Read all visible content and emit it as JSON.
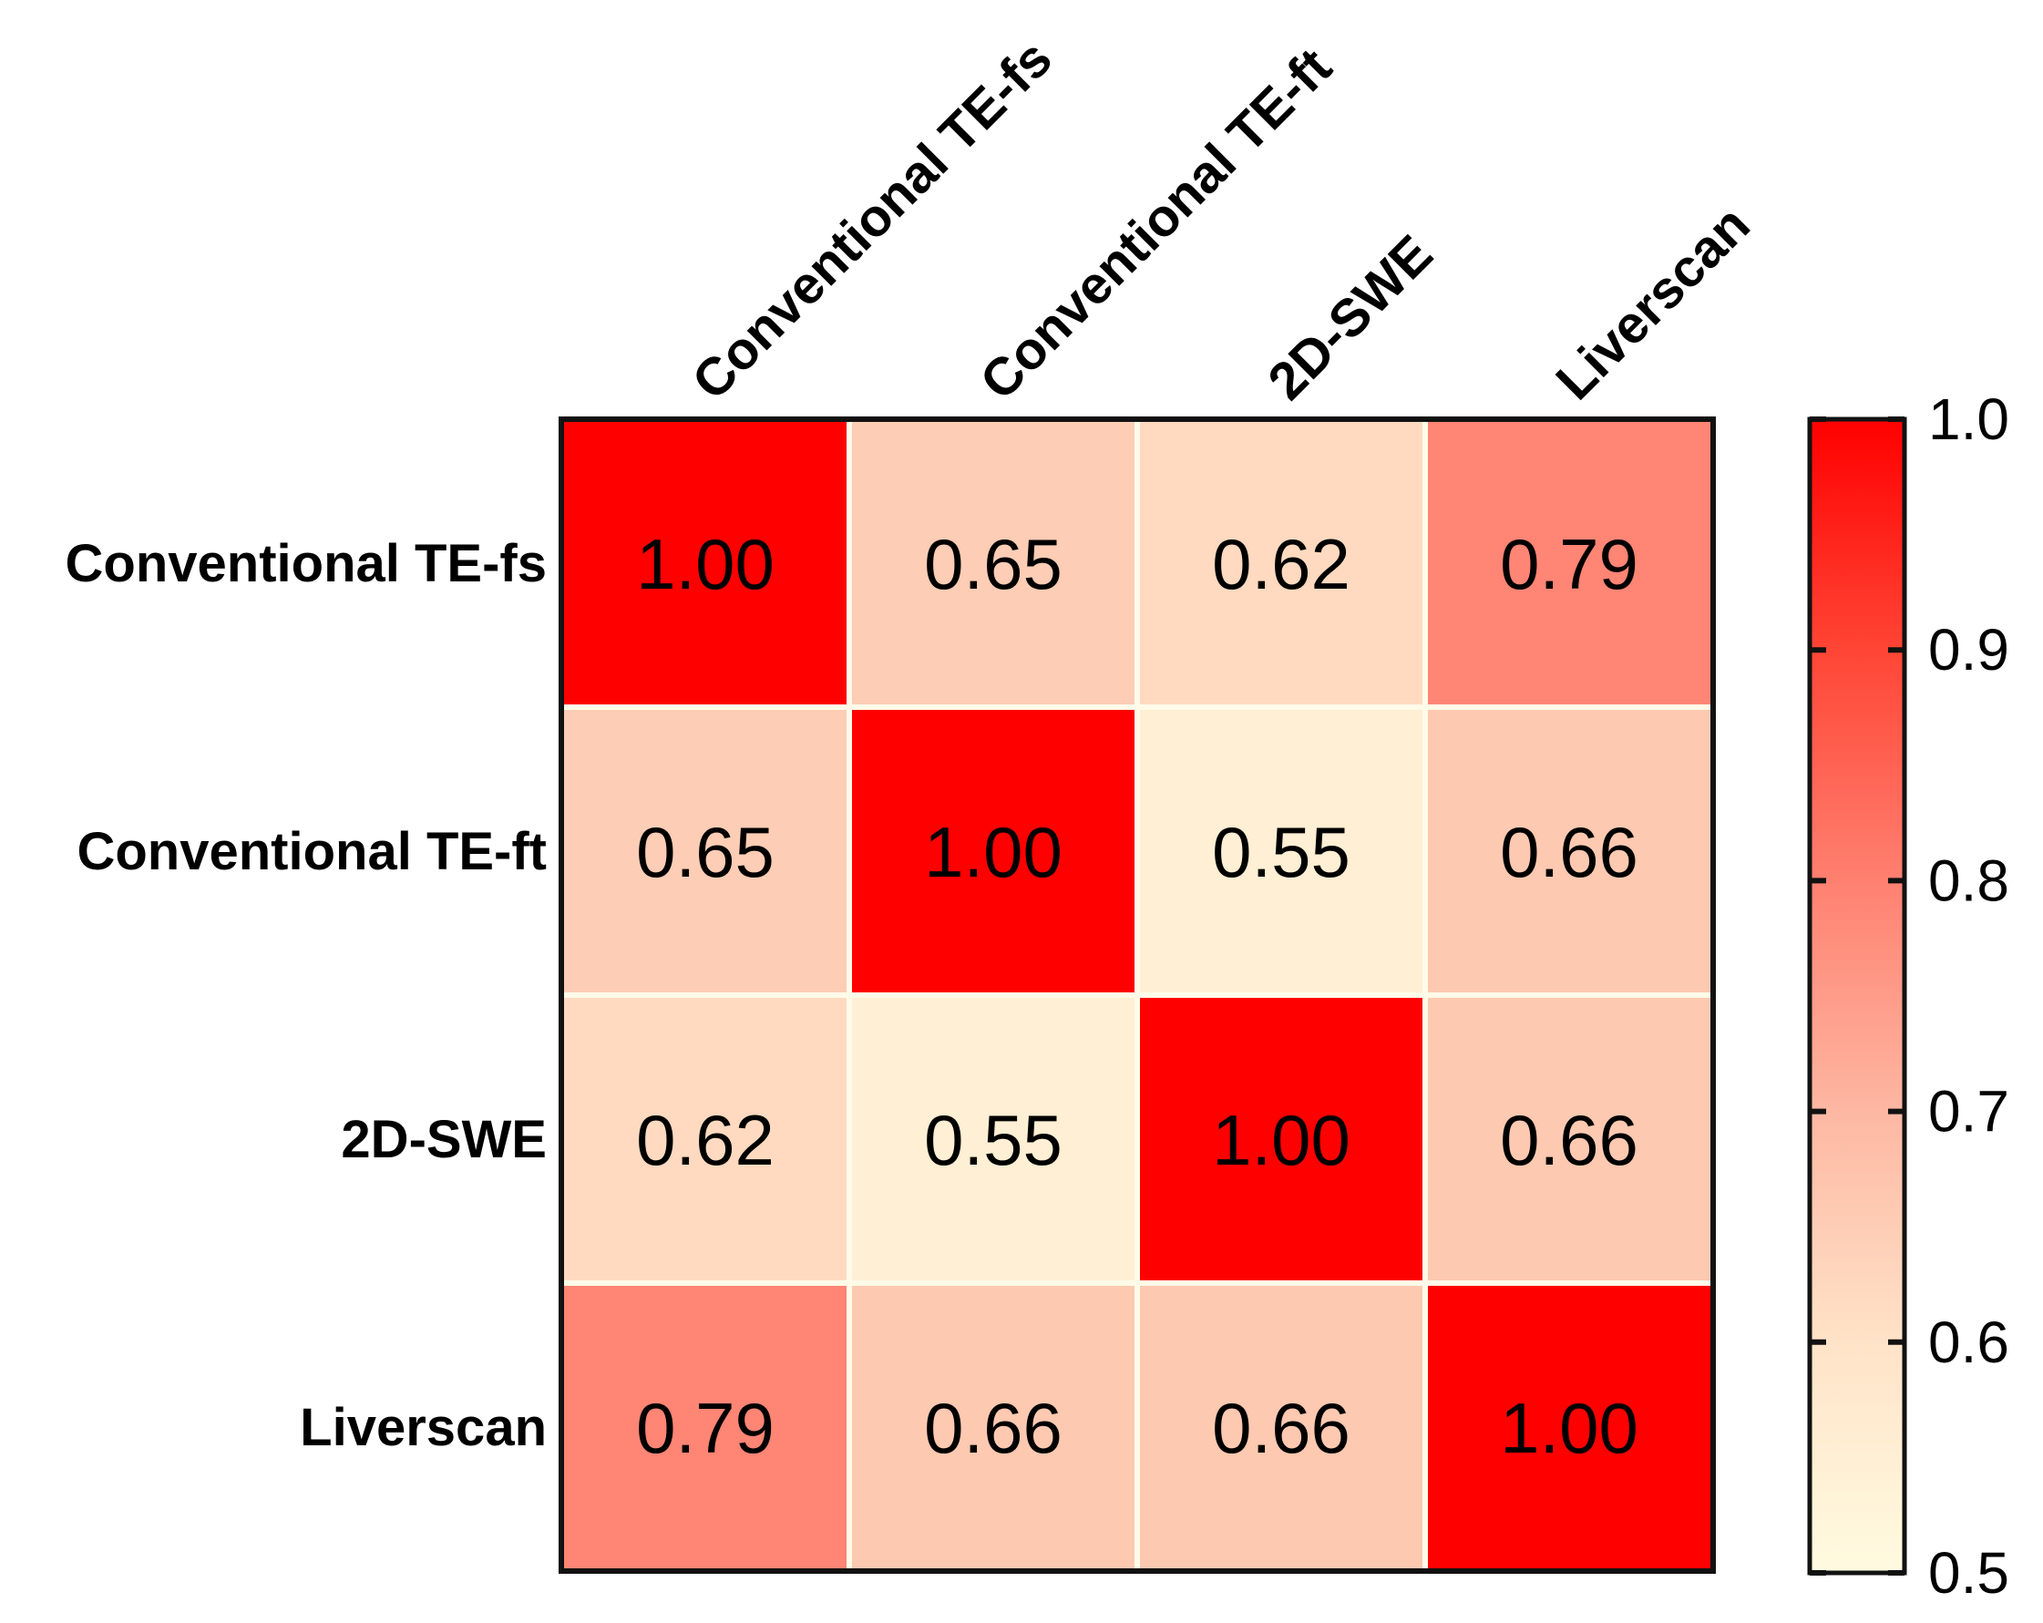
{
  "chart_data": {
    "type": "heatmap",
    "title": "",
    "row_labels": [
      "Conventional TE-fs",
      "Conventional TE-ft",
      "2D-SWE",
      "Liverscan"
    ],
    "col_labels": [
      "Conventional TE-fs",
      "Conventional TE-ft",
      "2D-SWE",
      "Liverscan"
    ],
    "values": [
      [
        1.0,
        0.65,
        0.62,
        0.79
      ],
      [
        0.65,
        1.0,
        0.55,
        0.66
      ],
      [
        0.62,
        0.55,
        1.0,
        0.66
      ],
      [
        0.79,
        0.66,
        0.66,
        1.0
      ]
    ],
    "value_labels": [
      [
        "1.00",
        "0.65",
        "0.62",
        "0.79"
      ],
      [
        "0.65",
        "1.00",
        "0.55",
        "0.66"
      ],
      [
        "0.62",
        "0.55",
        "1.00",
        "0.66"
      ],
      [
        "0.79",
        "0.66",
        "0.66",
        "1.00"
      ]
    ],
    "colorbar": {
      "range": [
        0.5,
        1.0
      ],
      "ticks": [
        0.5,
        0.6,
        0.7,
        0.8,
        0.9,
        1.0
      ],
      "tick_labels": [
        "0.5",
        "0.6",
        "0.7",
        "0.8",
        "0.9",
        "1.0"
      ],
      "colors": [
        "#fffbe0",
        "#ffe3c8",
        "#fdb7a2",
        "#ff8070",
        "#ff4535",
        "#ff0000"
      ],
      "position": "right"
    }
  }
}
